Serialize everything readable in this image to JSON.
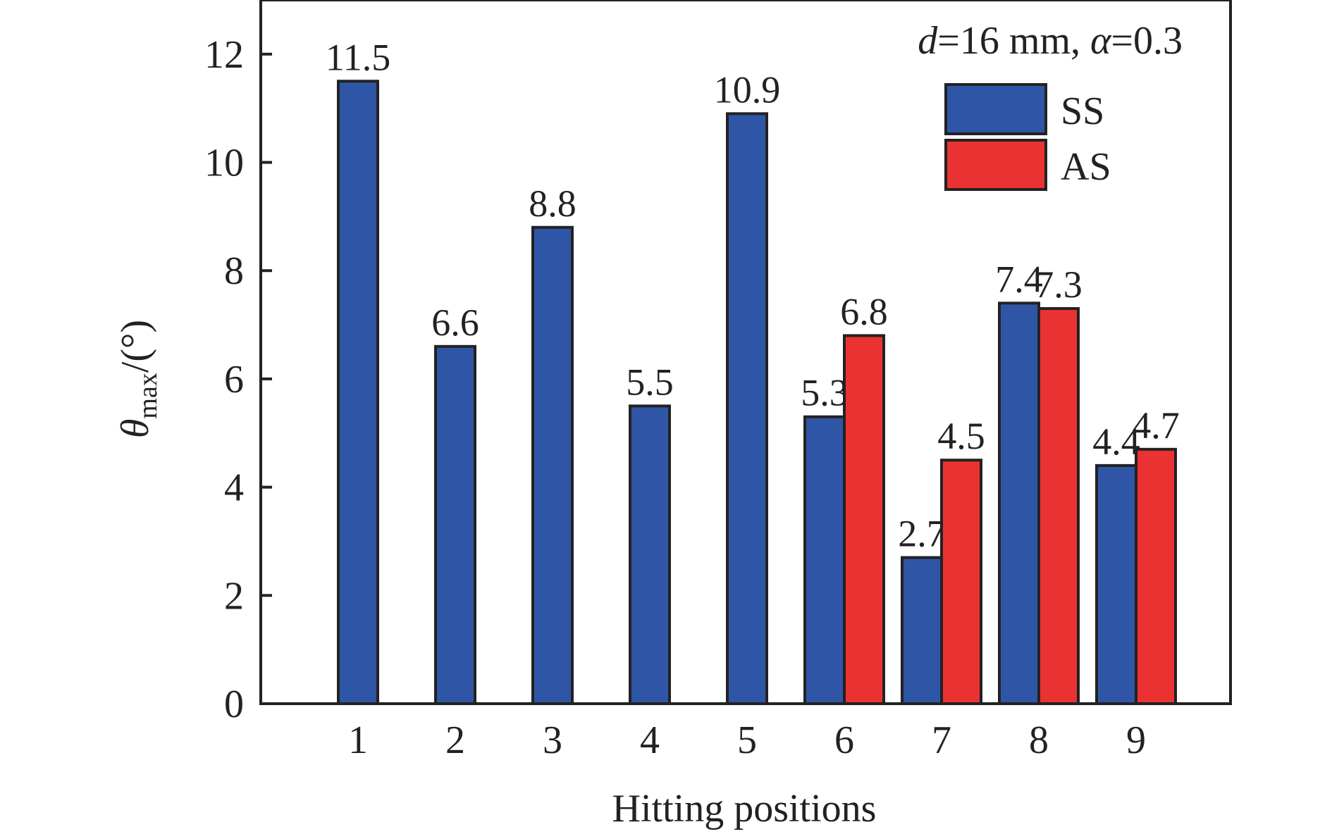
{
  "chart_data": {
    "type": "bar",
    "title": "",
    "annotation": {
      "d_symbol": "d",
      "d_value": "=16 mm, ",
      "alpha_symbol": "α",
      "alpha_value": "=0.3"
    },
    "xlabel": "Hitting positions",
    "ylabel": {
      "symbol": "θ",
      "subscript": "max",
      "unit": "/(°)"
    },
    "ylim": [
      0,
      13
    ],
    "yticks": [
      0,
      2,
      4,
      6,
      8,
      10,
      12
    ],
    "categories": [
      "1",
      "2",
      "3",
      "4",
      "5",
      "6",
      "7",
      "8",
      "9"
    ],
    "series": [
      {
        "name": "SS",
        "color": "#2f56a6",
        "values": [
          11.5,
          6.6,
          8.8,
          5.5,
          10.9,
          5.3,
          2.7,
          7.4,
          4.4
        ],
        "labels": [
          "11.5",
          "6.6",
          "8.8",
          "5.5",
          "10.9",
          "5.3",
          "2.7",
          "7.4",
          "4.4"
        ]
      },
      {
        "name": "AS",
        "color": "#eb3232",
        "values": [
          null,
          null,
          null,
          null,
          null,
          6.8,
          4.5,
          7.3,
          4.7
        ],
        "labels": [
          "",
          "",
          "",
          "",
          "",
          "6.8",
          "4.5",
          "7.3",
          "4.7"
        ]
      }
    ],
    "grid": false,
    "legend_position": "top-right"
  }
}
